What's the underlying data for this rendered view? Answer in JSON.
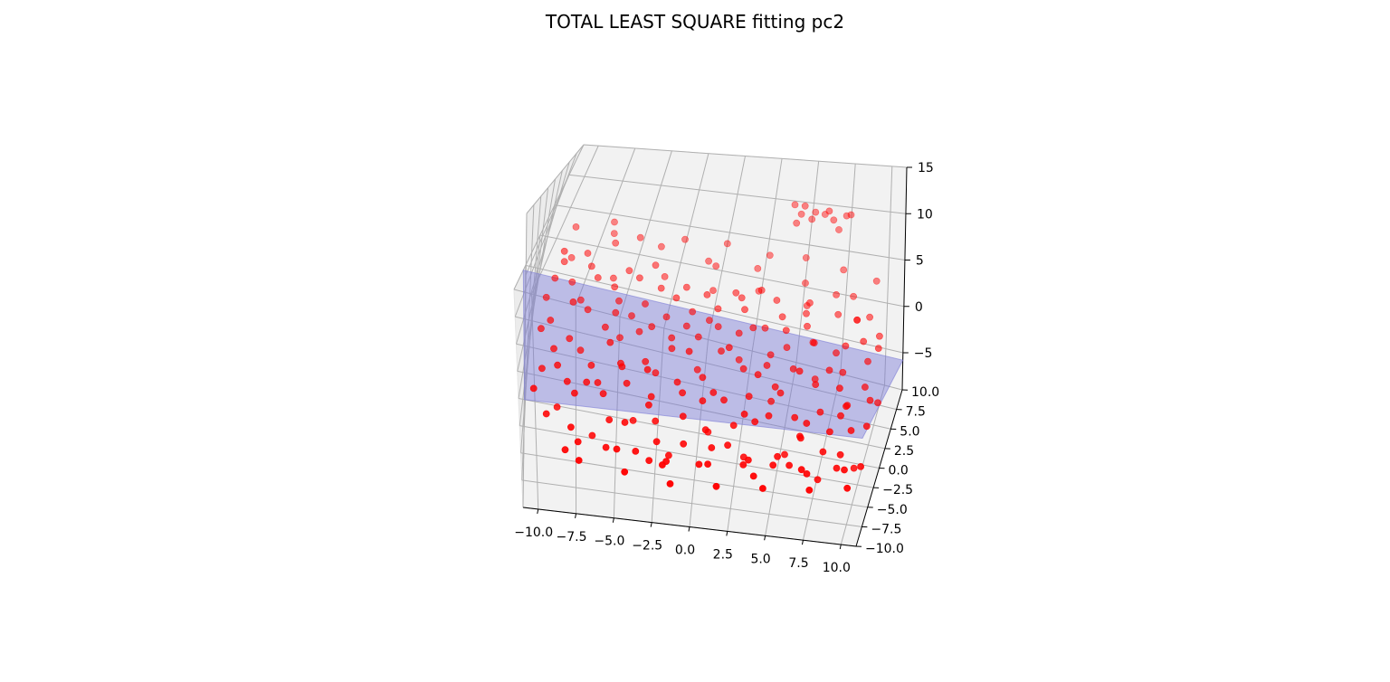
{
  "chart_data": {
    "type": "scatter",
    "projection": "3d",
    "title": "TOTAL LEAST SQUARE fitting pc2",
    "xlabel": "",
    "ylabel": "",
    "zlabel": "",
    "xlim": [
      -11,
      11
    ],
    "ylim": [
      -10,
      10
    ],
    "zlim": [
      -9,
      15
    ],
    "x_ticks": [
      "−10.0",
      "−7.5",
      "−5.0",
      "−2.5",
      "0.0",
      "2.5",
      "5.0",
      "7.5",
      "10.0"
    ],
    "y_ticks": [
      "−10.0",
      "−7.5",
      "−5.0",
      "−2.5",
      "0.0",
      "2.5",
      "5.0",
      "7.5",
      "10.0"
    ],
    "z_ticks": [
      "−5",
      "0",
      "5",
      "10",
      "15"
    ],
    "grid": true,
    "marker_color": "#ff0000",
    "fit_surface_color": "#7b7bd6",
    "fit_plane": {
      "a": 0.0,
      "b": -0.28,
      "c": -3.0
    },
    "series": [
      {
        "points": [
          [
            -10.2,
            3.4,
            -0.8
          ],
          [
            -9.8,
            1.2,
            -1.2
          ],
          [
            -9.5,
            6.1,
            1.3
          ],
          [
            -9.1,
            -2.3,
            -2.6
          ],
          [
            -8.8,
            4.8,
            0.2
          ],
          [
            -8.5,
            0.4,
            -2.1
          ],
          [
            -8.2,
            7.2,
            1.8
          ],
          [
            -7.9,
            -4.1,
            -3.5
          ],
          [
            -7.6,
            2.9,
            -0.9
          ],
          [
            -7.3,
            5.5,
            0.6
          ],
          [
            -7.0,
            -1.6,
            -2.7
          ],
          [
            -6.7,
            8.1,
            2.9
          ],
          [
            -6.4,
            1.8,
            -1.5
          ],
          [
            -6.1,
            -3.2,
            -3.9
          ],
          [
            -5.8,
            4.1,
            -0.4
          ],
          [
            -5.5,
            6.8,
            0.9
          ],
          [
            -5.2,
            -0.7,
            -2.8
          ],
          [
            -4.9,
            3.3,
            -1.1
          ],
          [
            -4.6,
            -5.2,
            -4.6
          ],
          [
            -4.3,
            2.2,
            -1.7
          ],
          [
            -4.0,
            7.5,
            1.5
          ],
          [
            -3.7,
            0.1,
            -2.9
          ],
          [
            -3.4,
            5.9,
            0.3
          ],
          [
            -3.1,
            -2.8,
            -3.8
          ],
          [
            -2.8,
            3.8,
            -1.0
          ],
          [
            -2.5,
            -6.1,
            -5.2
          ],
          [
            -2.2,
            1.4,
            -2.2
          ],
          [
            -1.9,
            6.4,
            0.5
          ],
          [
            -1.6,
            -1.1,
            -3.4
          ],
          [
            -1.3,
            4.6,
            -0.6
          ],
          [
            -1.0,
            -3.9,
            -4.3
          ],
          [
            -0.7,
            2.7,
            -1.6
          ],
          [
            -0.4,
            8.4,
            1.9
          ],
          [
            -0.1,
            -0.4,
            -3.1
          ],
          [
            0.2,
            5.1,
            -0.2
          ],
          [
            0.5,
            -4.7,
            -4.6
          ],
          [
            0.8,
            1.9,
            -2.0
          ],
          [
            1.1,
            6.6,
            0.7
          ],
          [
            1.4,
            -2.1,
            -3.6
          ],
          [
            1.7,
            3.6,
            -1.2
          ],
          [
            2.0,
            -5.6,
            -5.0
          ],
          [
            2.3,
            0.9,
            -2.6
          ],
          [
            2.6,
            7.1,
            1.1
          ],
          [
            2.9,
            -1.4,
            -3.4
          ],
          [
            3.2,
            4.4,
            -0.8
          ],
          [
            3.5,
            -3.5,
            -4.1
          ],
          [
            3.8,
            2.4,
            -1.9
          ],
          [
            4.1,
            5.7,
            -0.3
          ],
          [
            4.4,
            -0.2,
            -3.0
          ],
          [
            4.7,
            3.1,
            -1.4
          ],
          [
            5.0,
            -6.4,
            -5.6
          ],
          [
            5.3,
            1.6,
            -2.3
          ],
          [
            5.6,
            6.9,
            0.8
          ],
          [
            5.9,
            -2.6,
            -3.8
          ],
          [
            6.2,
            4.0,
            -1.1
          ],
          [
            6.5,
            -4.4,
            -4.3
          ],
          [
            6.8,
            0.6,
            -2.7
          ],
          [
            7.1,
            7.7,
            1.6
          ],
          [
            7.4,
            -1.8,
            -3.5
          ],
          [
            7.7,
            3.4,
            -1.3
          ],
          [
            8.0,
            -5.0,
            -4.8
          ],
          [
            8.3,
            2.0,
            -2.1
          ],
          [
            8.6,
            6.2,
            0.4
          ],
          [
            8.9,
            -0.9,
            -3.2
          ],
          [
            9.2,
            4.7,
            -0.6
          ],
          [
            9.5,
            -3.0,
            -3.9
          ],
          [
            9.8,
            1.1,
            -2.5
          ],
          [
            10.1,
            5.3,
            -0.2
          ],
          [
            10.4,
            -2.4,
            -3.7
          ],
          [
            -9.3,
            8.9,
            3.4
          ],
          [
            -8.0,
            -6.2,
            -4.9
          ],
          [
            -6.9,
            9.2,
            3.1
          ],
          [
            -5.0,
            -7.4,
            -5.3
          ],
          [
            -3.9,
            9.0,
            2.6
          ],
          [
            -2.0,
            -8.1,
            -5.6
          ],
          [
            -0.9,
            8.8,
            2.0
          ],
          [
            0.9,
            -7.6,
            -5.4
          ],
          [
            2.1,
            9.1,
            1.9
          ],
          [
            3.9,
            -7.9,
            -5.7
          ],
          [
            5.1,
            8.6,
            1.6
          ],
          [
            6.9,
            -7.2,
            -5.1
          ],
          [
            8.1,
            8.3,
            1.3
          ],
          [
            9.6,
            -6.8,
            -4.9
          ],
          [
            -10.5,
            -4.6,
            -3.2
          ],
          [
            -7.4,
            -8.5,
            -5.8
          ],
          [
            -4.4,
            -9.0,
            -5.9
          ],
          [
            -1.4,
            -9.3,
            -6.2
          ],
          [
            1.6,
            -9.1,
            -6.1
          ],
          [
            4.6,
            -8.8,
            -6.0
          ],
          [
            7.6,
            -8.6,
            -5.8
          ],
          [
            10.0,
            -8.2,
            -5.5
          ],
          [
            -9.7,
            5.8,
            2.9
          ],
          [
            -8.6,
            2.1,
            0.4
          ],
          [
            -7.1,
            9.6,
            4.3
          ],
          [
            -6.0,
            -0.3,
            -1.2
          ],
          [
            -5.3,
            8.7,
            3.6
          ],
          [
            -3.5,
            -1.9,
            -2.0
          ],
          [
            -2.6,
            9.4,
            3.7
          ],
          [
            -1.1,
            0.3,
            -1.3
          ],
          [
            0.0,
            9.7,
            3.8
          ],
          [
            1.3,
            1.0,
            -0.8
          ],
          [
            2.7,
            9.5,
            3.4
          ],
          [
            3.3,
            -0.6,
            -1.8
          ],
          [
            4.9,
            9.8,
            3.6
          ],
          [
            5.8,
            0.2,
            -1.4
          ],
          [
            7.3,
            9.3,
            3.3
          ],
          [
            8.4,
            -0.5,
            -1.9
          ],
          [
            9.4,
            9.0,
            2.9
          ],
          [
            -10.0,
            -1.5,
            -3.9
          ],
          [
            -8.9,
            -3.6,
            -5.5
          ],
          [
            -7.7,
            0.9,
            -3.6
          ],
          [
            -6.6,
            -5.0,
            -6.4
          ],
          [
            -5.4,
            2.6,
            -3.1
          ],
          [
            -4.1,
            -3.3,
            -5.9
          ],
          [
            -3.0,
            0.6,
            -4.3
          ],
          [
            -1.7,
            -5.3,
            -6.9
          ],
          [
            -0.5,
            1.5,
            -4.0
          ],
          [
            0.6,
            -3.0,
            -6.1
          ],
          [
            1.9,
            2.9,
            -3.4
          ],
          [
            3.0,
            -4.6,
            -6.6
          ],
          [
            4.2,
            0.0,
            -4.6
          ],
          [
            5.5,
            -3.8,
            -6.4
          ],
          [
            6.6,
            2.5,
            -3.6
          ],
          [
            7.8,
            -5.4,
            -7.0
          ],
          [
            8.8,
            0.8,
            -4.3
          ],
          [
            9.9,
            -4.0,
            -6.5
          ],
          [
            10.6,
            1.3,
            -3.9
          ],
          [
            -9.0,
            7.9,
            0.1
          ],
          [
            -6.3,
            7.0,
            -0.6
          ],
          [
            -3.3,
            7.8,
            0.0
          ],
          [
            -0.3,
            7.4,
            -0.2
          ],
          [
            2.4,
            8.0,
            0.2
          ],
          [
            5.4,
            7.6,
            -0.1
          ],
          [
            8.5,
            7.3,
            -0.4
          ],
          [
            -8.3,
            -7.1,
            -6.2
          ],
          [
            -5.7,
            -6.5,
            -6.0
          ],
          [
            -2.9,
            -6.9,
            -6.3
          ],
          [
            0.3,
            -6.7,
            -6.2
          ],
          [
            3.1,
            -6.3,
            -6.0
          ],
          [
            6.0,
            -6.0,
            -5.7
          ],
          [
            9.0,
            -5.8,
            -5.5
          ],
          [
            -10.3,
            0.8,
            -1.9
          ],
          [
            -9.4,
            -0.6,
            -2.5
          ],
          [
            -8.1,
            3.7,
            -0.7
          ],
          [
            -7.2,
            -2.9,
            -3.3
          ],
          [
            -6.2,
            5.1,
            0.2
          ],
          [
            -5.1,
            -1.3,
            -2.6
          ],
          [
            -4.2,
            4.3,
            -0.4
          ],
          [
            -3.2,
            -3.7,
            -3.9
          ],
          [
            -2.3,
            2.0,
            -1.6
          ],
          [
            -1.2,
            -2.4,
            -3.3
          ],
          [
            -0.2,
            4.0,
            -0.7
          ],
          [
            0.7,
            -1.9,
            -3.2
          ],
          [
            1.8,
            5.4,
            0.0
          ],
          [
            2.8,
            -3.3,
            -3.7
          ],
          [
            3.7,
            1.2,
            -2.1
          ],
          [
            4.8,
            -1.0,
            -2.9
          ],
          [
            5.7,
            5.0,
            -0.3
          ],
          [
            6.7,
            -3.1,
            -3.8
          ],
          [
            7.5,
            1.7,
            -1.9
          ],
          [
            8.7,
            -2.0,
            -3.4
          ],
          [
            9.7,
            3.0,
            -1.3
          ],
          [
            10.3,
            -0.3,
            -2.7
          ],
          [
            3.8,
            9.9,
            9.6
          ],
          [
            4.3,
            9.7,
            8.7
          ],
          [
            4.5,
            9.4,
            9.9
          ],
          [
            5.0,
            9.8,
            8.2
          ],
          [
            5.2,
            9.6,
            9.2
          ],
          [
            5.8,
            9.9,
            8.9
          ],
          [
            6.4,
            9.7,
            8.5
          ],
          [
            6.8,
            9.5,
            7.6
          ],
          [
            6.1,
            9.3,
            9.7
          ],
          [
            7.2,
            9.8,
            9.1
          ],
          [
            4.1,
            9.2,
            7.9
          ],
          [
            7.5,
            9.6,
            9.4
          ],
          [
            -9.9,
            4.4,
            0.7
          ],
          [
            -7.8,
            6.4,
            1.0
          ],
          [
            -5.9,
            3.0,
            -0.8
          ],
          [
            -4.8,
            6.2,
            0.8
          ],
          [
            -3.6,
            2.5,
            -1.2
          ],
          [
            -2.4,
            5.2,
            0.1
          ],
          [
            -1.5,
            3.1,
            -1.0
          ],
          [
            -0.6,
            6.0,
            0.4
          ],
          [
            0.4,
            3.5,
            -0.8
          ],
          [
            1.5,
            6.3,
            0.5
          ],
          [
            2.5,
            3.9,
            -0.6
          ],
          [
            3.6,
            6.7,
            0.6
          ],
          [
            4.5,
            4.2,
            -0.5
          ],
          [
            5.5,
            6.1,
            0.2
          ],
          [
            6.3,
            3.7,
            -0.9
          ],
          [
            7.4,
            6.5,
            0.4
          ],
          [
            8.2,
            3.9,
            -0.8
          ],
          [
            9.3,
            6.8,
            0.5
          ],
          [
            10.2,
            4.1,
            -0.6
          ],
          [
            -9.6,
            -5.5,
            -4.6
          ],
          [
            -8.4,
            -2.7,
            -3.7
          ],
          [
            -7.5,
            -6.8,
            -5.6
          ],
          [
            -6.5,
            -2.4,
            -3.6
          ],
          [
            -5.6,
            -4.8,
            -4.9
          ],
          [
            -4.7,
            -2.2,
            -3.4
          ],
          [
            -3.8,
            -6.6,
            -5.9
          ],
          [
            -2.7,
            -4.3,
            -4.8
          ],
          [
            -1.8,
            -7.0,
            -6.1
          ],
          [
            -0.8,
            -5.8,
            -5.3
          ],
          [
            0.1,
            -2.6,
            -3.6
          ],
          [
            1.0,
            -5.9,
            -5.2
          ],
          [
            2.2,
            -3.8,
            -4.5
          ],
          [
            3.4,
            -6.2,
            -5.6
          ],
          [
            4.3,
            -2.9,
            -3.8
          ],
          [
            5.2,
            -5.7,
            -5.3
          ],
          [
            6.4,
            -3.9,
            -4.5
          ],
          [
            7.2,
            -6.6,
            -5.8
          ],
          [
            8.2,
            -3.3,
            -4.1
          ],
          [
            9.1,
            -4.9,
            -4.9
          ],
          [
            10.5,
            -5.6,
            -5.2
          ]
        ]
      }
    ]
  }
}
